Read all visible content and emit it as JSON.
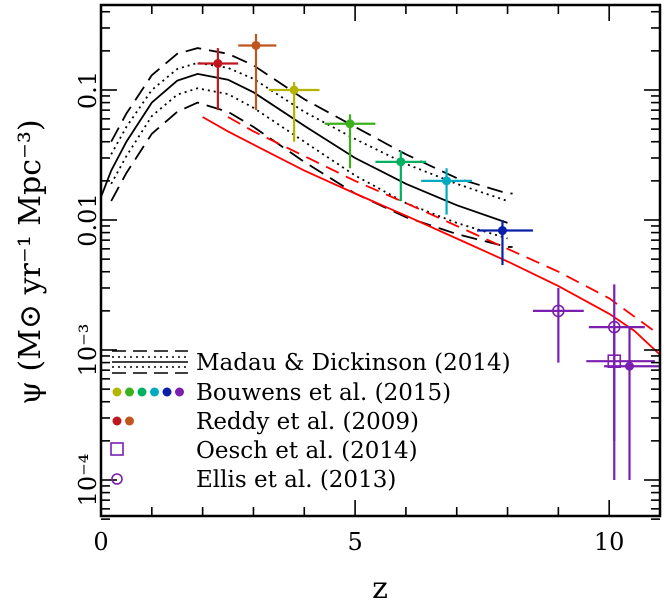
{
  "chart_data": {
    "type": "scatter",
    "xlabel": "z",
    "ylabel": "ψ (M⊙ yr⁻¹ Mpc⁻³)",
    "xlim": [
      0,
      11
    ],
    "ylim": [
      5e-05,
      0.5
    ],
    "yscale": "log",
    "x_ticks": [
      {
        "value": 0,
        "label": "0"
      },
      {
        "value": 5,
        "label": "5"
      },
      {
        "value": 10,
        "label": "10"
      }
    ],
    "y_ticks": [
      {
        "value": 0.1,
        "label": "0.1"
      },
      {
        "value": 0.01,
        "label": "0.01"
      },
      {
        "value": 0.001,
        "label": "10⁻³"
      },
      {
        "value": 0.0001,
        "label": "10⁻⁴"
      }
    ],
    "legend_position": "bottom-left",
    "legend": [
      {
        "label": "Madau & Dickinson (2014)",
        "symbol": "lines"
      },
      {
        "label": "Bouwens et al. (2015)",
        "symbol": "filled-circles-rainbow"
      },
      {
        "label": "Reddy et al. (2009)",
        "symbol": "filled-circles-red"
      },
      {
        "label": "Oesch et al. (2014)",
        "symbol": "open-square"
      },
      {
        "label": "Ellis et al. (2013)",
        "symbol": "open-circle"
      }
    ],
    "curves": {
      "md14_central": {
        "color": "#000000",
        "dash": "solid",
        "x": [
          0,
          0.2,
          0.5,
          1.0,
          1.5,
          1.9,
          2.5,
          3.0,
          4.0,
          5.0,
          6.0,
          7.0,
          8.0
        ],
        "y": [
          0.015,
          0.024,
          0.04,
          0.08,
          0.118,
          0.133,
          0.12,
          0.096,
          0.053,
          0.03,
          0.019,
          0.013,
          0.0095
        ]
      },
      "md14_inner_upper": {
        "color": "#000000",
        "dash": "dotted",
        "x": [
          0.2,
          0.5,
          1.0,
          1.5,
          1.9,
          2.5,
          3.0,
          4.0,
          5.0,
          6.0,
          7.0,
          8.0
        ],
        "y": [
          0.032,
          0.052,
          0.1,
          0.145,
          0.162,
          0.148,
          0.122,
          0.068,
          0.042,
          0.027,
          0.019,
          0.014
        ]
      },
      "md14_inner_lower": {
        "color": "#000000",
        "dash": "dotted",
        "x": [
          0.2,
          0.5,
          1.0,
          1.5,
          1.9,
          2.5,
          3.0,
          4.0,
          5.0,
          6.0,
          7.0,
          8.0
        ],
        "y": [
          0.019,
          0.031,
          0.063,
          0.092,
          0.103,
          0.093,
          0.073,
          0.04,
          0.022,
          0.0135,
          0.0095,
          0.0072
        ]
      },
      "md14_outer_upper": {
        "color": "#000000",
        "dash": "longdash",
        "x": [
          0.2,
          0.5,
          1.0,
          1.5,
          1.9,
          2.5,
          3.0,
          4.0,
          5.0,
          6.0,
          7.0,
          8.0,
          8.1
        ],
        "y": [
          0.04,
          0.066,
          0.13,
          0.19,
          0.21,
          0.19,
          0.155,
          0.085,
          0.052,
          0.032,
          0.021,
          0.016,
          0.016
        ]
      },
      "md14_outer_lower": {
        "color": "#000000",
        "dash": "longdash",
        "x": [
          0.2,
          0.5,
          1.0,
          1.5,
          1.9,
          2.5,
          3.0,
          4.0,
          5.0,
          6.0,
          7.0,
          8.0,
          8.1
        ],
        "y": [
          0.014,
          0.023,
          0.046,
          0.068,
          0.08,
          0.068,
          0.052,
          0.028,
          0.016,
          0.0105,
          0.0078,
          0.0062,
          0.0062
        ]
      },
      "model_solid": {
        "color": "#ff0000",
        "dash": "solid",
        "x": [
          2.0,
          2.5,
          3.0,
          4.0,
          5.0,
          6.0,
          7.0,
          8.0,
          9.0,
          10.0,
          10.5,
          11.0
        ],
        "y": [
          0.062,
          0.048,
          0.038,
          0.024,
          0.016,
          0.0108,
          0.0072,
          0.0048,
          0.0031,
          0.0019,
          0.0014,
          0.00092
        ]
      },
      "model_dashed": {
        "color": "#ff0000",
        "dash": "dashed",
        "x": [
          2.5,
          3.0,
          4.0,
          5.0,
          6.0,
          7.0,
          8.0,
          9.0,
          10.0,
          10.5,
          11.0
        ],
        "y": [
          0.062,
          0.048,
          0.031,
          0.02,
          0.0135,
          0.009,
          0.006,
          0.004,
          0.0025,
          0.0018,
          0.0013
        ]
      }
    },
    "series": [
      {
        "group": "Reddy et al. (2009)",
        "color": "#c0161e",
        "marker": "filled-circle",
        "points": [
          {
            "x": 2.3,
            "y": 0.16,
            "xerr": [
              0.4,
              0.4
            ],
            "yerr": [
              0.09,
              0.05
            ]
          }
        ]
      },
      {
        "group": "Reddy et al. (2009)",
        "color": "#c0561e",
        "marker": "filled-circle",
        "points": [
          {
            "x": 3.05,
            "y": 0.22,
            "xerr": [
              0.35,
              0.4
            ],
            "yerr": [
              0.15,
              0.05
            ]
          }
        ]
      },
      {
        "group": "Bouwens et al. (2015)",
        "color": "#b5b500",
        "marker": "filled-circle",
        "points": [
          {
            "x": 3.8,
            "y": 0.1,
            "xerr": [
              0.5,
              0.5
            ],
            "yerr": [
              0.06,
              0.015
            ]
          }
        ]
      },
      {
        "group": "Bouwens et al. (2015)",
        "color": "#3cb01e",
        "marker": "filled-circle",
        "points": [
          {
            "x": 4.9,
            "y": 0.055,
            "xerr": [
              0.5,
              0.5
            ],
            "yerr": [
              0.03,
              0.01
            ]
          }
        ]
      },
      {
        "group": "Bouwens et al. (2015)",
        "color": "#00b060",
        "marker": "filled-circle",
        "points": [
          {
            "x": 5.9,
            "y": 0.028,
            "xerr": [
              0.5,
              0.5
            ],
            "yerr": [
              0.014,
              0.006
            ]
          }
        ]
      },
      {
        "group": "Bouwens et al. (2015)",
        "color": "#00aac0",
        "marker": "filled-circle",
        "points": [
          {
            "x": 6.8,
            "y": 0.02,
            "xerr": [
              0.5,
              0.5
            ],
            "yerr": [
              0.009,
              0.005
            ]
          }
        ]
      },
      {
        "group": "Bouwens et al. (2015)",
        "color": "#0a1fa8",
        "marker": "filled-circle",
        "points": [
          {
            "x": 7.9,
            "y": 0.0083,
            "xerr": [
              0.5,
              0.6
            ],
            "yerr": [
              0.0038,
              0.0017
            ]
          }
        ]
      },
      {
        "group": "Ellis et al. (2013)",
        "color": "#7a1fb0",
        "marker": "open-circle",
        "points": [
          {
            "x": 9.0,
            "y": 0.002,
            "xerr": [
              0.5,
              0.5
            ],
            "yerr": [
              0.0012,
              0.001
            ]
          },
          {
            "x": 10.1,
            "y": 0.0015,
            "xerr": [
              0.5,
              0.6
            ],
            "yerr": [
              0.0013,
              0.0017
            ]
          }
        ]
      },
      {
        "group": "Oesch et al. (2014)",
        "color": "#7a1fb0",
        "marker": "open-square",
        "points": [
          {
            "x": 10.1,
            "y": 0.00082,
            "xerr": [
              0.55,
              0.8
            ],
            "yerr": [
              0.00072,
              0.00068
            ]
          }
        ]
      },
      {
        "group": "Oesch et al. (2014)",
        "color": "#7a1fb0",
        "marker": "filled-circle",
        "points": [
          {
            "x": 10.4,
            "y": 0.00075,
            "xerr": [
              0.5,
              0.6
            ],
            "yerr": [
              0.00065,
              0.00075
            ]
          }
        ]
      }
    ],
    "legend_dot_colors": {
      "bouwens": [
        "#b5b500",
        "#3cb01e",
        "#00b060",
        "#00aac0",
        "#0a1fa8",
        "#7a1fb0"
      ],
      "reddy": [
        "#c0161e",
        "#c0561e"
      ],
      "oesch": "#7a1fb0",
      "ellis": "#7a1fb0"
    }
  }
}
